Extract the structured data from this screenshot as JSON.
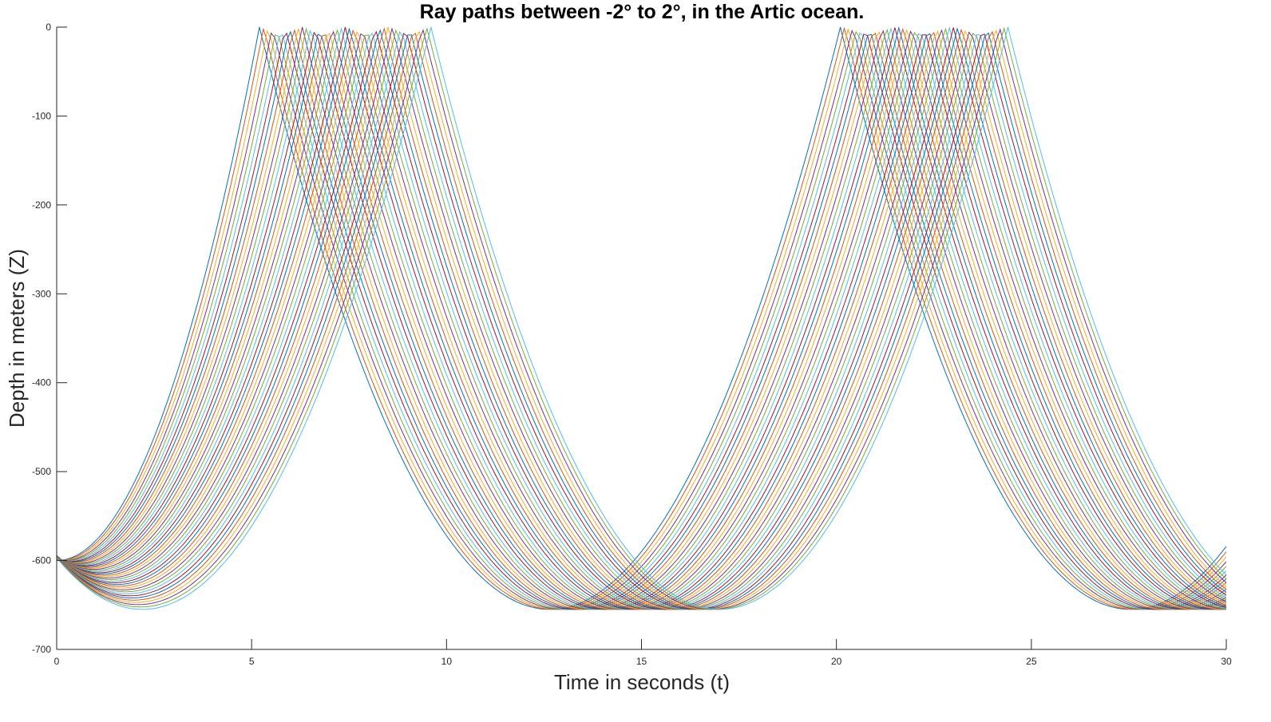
{
  "chart_data": {
    "type": "line",
    "title": "Ray paths between -2° to 2°, in the Artic ocean.",
    "xlabel": "Time in seconds (t)",
    "ylabel": "Depth in meters (Z)",
    "xlim": [
      0,
      30
    ],
    "ylim": [
      -700,
      0
    ],
    "xticks": [
      "0",
      "5",
      "10",
      "15",
      "20",
      "25",
      "30"
    ],
    "yticks": [
      "0",
      "-100",
      "-200",
      "-300",
      "-400",
      "-500",
      "-600",
      "-700"
    ],
    "grid": false,
    "legend": "none",
    "source_depth": -600,
    "launch_angle_range_deg": [
      -2,
      2
    ],
    "ray_count": 41,
    "surface_time_range_first_up": [
      5.2,
      9.6
    ],
    "surface_time_range_second_up": [
      20.1,
      24.4
    ],
    "min_depth": -655,
    "colors": [
      "#0072BD",
      "#D95319",
      "#EDB120",
      "#7E2F8E",
      "#77AC30",
      "#4DBEEE",
      "#A2142F"
    ]
  }
}
